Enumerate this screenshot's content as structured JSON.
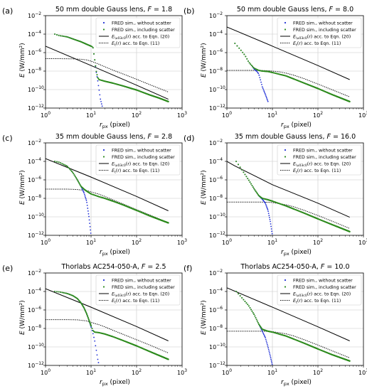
{
  "figure": {
    "legend": {
      "entries": [
        {
          "label": "FRED sim., without scatter",
          "style": "dots",
          "color": "#1f2fd6"
        },
        {
          "label": "FRED sim., including scatter",
          "style": "dots",
          "color": "#2e8b1e"
        },
        {
          "label": "E_{\\u03c0}(r) acc. to Eqn. (20)",
          "style": "solid",
          "color": "#000000"
        },
        {
          "label": "E_{t}(r) acc. to Eqn. (11)",
          "style": "dotted",
          "color": "#000000"
        }
      ],
      "placement": "top-right"
    },
    "colors": {
      "without_scatter": "#1f2fd6",
      "including_scatter": "#2e8b1e",
      "grid": "#c8c8c8"
    }
  },
  "chart_data": [
    {
      "type": "scatter",
      "panel_label": "(a)",
      "title": "50 mm double Gauss lens, F = 1.8",
      "xlabel": "r_px (pixel)",
      "ylabel": "E (W/mm²)",
      "xscale": "log",
      "yscale": "log",
      "xlim": [
        1,
        1000
      ],
      "ylim": [
        1e-12,
        0.01
      ],
      "grid": true,
      "xticks": [
        "10^0",
        "10^1",
        "10^2",
        "10^3"
      ],
      "yticks": [
        "10^-12",
        "10^-10",
        "10^-8",
        "10^-6",
        "10^-4",
        "10^-2"
      ],
      "series": [
        {
          "name": "FRED sim., without scatter",
          "x": [
            1.6,
            2,
            3,
            4,
            6,
            8,
            10,
            11,
            12,
            13,
            14,
            15,
            16,
            17,
            18
          ],
          "y": [
            0.0001,
            7e-05,
            5e-05,
            3e-05,
            1.5e-05,
            8e-06,
            5e-06,
            4e-06,
            2e-07,
            8e-09,
            1e-09,
            1e-10,
            1e-11,
            3e-12,
            1e-12
          ]
        },
        {
          "name": "FRED sim., including scatter",
          "x": [
            1.6,
            2,
            3,
            4,
            6,
            8,
            10,
            11,
            12,
            13,
            14,
            15,
            20,
            30,
            50,
            100,
            200,
            300,
            500
          ],
          "y": [
            0.0001,
            7e-05,
            5e-05,
            3e-05,
            1.5e-05,
            8e-06,
            5e-06,
            4e-06,
            2e-07,
            1e-08,
            2e-09,
            1.2e-09,
            8e-10,
            5e-10,
            2.5e-10,
            9e-11,
            2.5e-11,
            1.3e-11,
            5e-12
          ]
        },
        {
          "name": "E_{π}(r) acc. to Eqn. (20)",
          "x": [
            1,
            10,
            100,
            500
          ],
          "y": [
            5e-06,
            4e-08,
            3e-10,
            9e-12
          ]
        },
        {
          "name": "E_{t}(r) acc. to Eqn. (11)",
          "x": [
            1,
            2,
            4,
            6,
            8,
            10,
            15,
            20,
            30,
            50,
            100,
            200,
            500
          ],
          "y": [
            2.2e-07,
            2.2e-07,
            2.1e-07,
            1.9e-07,
            1.6e-07,
            1.2e-07,
            5.5e-08,
            3e-08,
            1.3e-08,
            5e-09,
            1.3e-09,
            3.3e-10,
            5.5e-11
          ]
        }
      ]
    },
    {
      "type": "scatter",
      "panel_label": "(b)",
      "title": "50 mm double Gauss lens, F = 8.0",
      "xlabel": "r_px (pixel)",
      "ylabel": "E (W/mm²)",
      "xscale": "log",
      "yscale": "log",
      "xlim": [
        1,
        1000
      ],
      "ylim": [
        1e-12,
        0.01
      ],
      "grid": true,
      "xticks": [
        "10^0",
        "10^1",
        "10^2",
        "10^3"
      ],
      "yticks": [
        "10^-12",
        "10^-10",
        "10^-8",
        "10^-6",
        "10^-4",
        "10^-2"
      ],
      "series": [
        {
          "name": "FRED sim., without scatter",
          "x": [
            1.5,
            2,
            2.5,
            3,
            3.5,
            4,
            4.5,
            5,
            5.5,
            6,
            7,
            8
          ],
          "y": [
            1e-05,
            2e-06,
            5e-07,
            1e-07,
            4e-08,
            1.5e-08,
            1e-08,
            5e-09,
            1e-09,
            2e-10,
            3e-11,
            5e-12
          ]
        },
        {
          "name": "FRED sim., including scatter",
          "x": [
            1.5,
            2,
            2.5,
            3,
            3.5,
            4,
            5,
            6,
            8,
            10,
            20,
            50,
            100,
            200,
            500
          ],
          "y": [
            1e-05,
            2e-06,
            5e-07,
            1e-07,
            4e-08,
            2e-08,
            1.2e-08,
            1e-08,
            9e-09,
            7e-09,
            3e-09,
            5e-10,
            1.3e-10,
            3e-11,
            5e-12
          ]
        },
        {
          "name": "E_{π}(r) acc. to Eqn. (20)",
          "x": [
            1,
            10,
            100,
            500
          ],
          "y": [
            0.0006,
            5e-06,
            4e-08,
            1.2e-09
          ]
        },
        {
          "name": "E_{t}(r) acc. to Eqn. (11)",
          "x": [
            1,
            3,
            5,
            8,
            10,
            15,
            20,
            30,
            50,
            100,
            200,
            500
          ],
          "y": [
            1.2e-08,
            1.2e-08,
            1.2e-08,
            1.1e-08,
            1e-08,
            8e-09,
            6e-09,
            3.5e-09,
            1.5e-09,
            4e-10,
            1e-10,
            1.6e-11
          ]
        }
      ]
    },
    {
      "type": "scatter",
      "panel_label": "(c)",
      "title": "35 mm double Gauss lens, F = 2.8",
      "xlabel": "r_px (pixel)",
      "ylabel": "E (W/mm²)",
      "xscale": "log",
      "yscale": "log",
      "xlim": [
        1,
        1000
      ],
      "ylim": [
        1e-12,
        0.01
      ],
      "grid": true,
      "xticks": [
        "10^0",
        "10^1",
        "10^2",
        "10^3"
      ],
      "yticks": [
        "10^-12",
        "10^-10",
        "10^-8",
        "10^-6",
        "10^-4",
        "10^-2"
      ],
      "series": [
        {
          "name": "FRED sim., without scatter",
          "x": [
            1.6,
            2,
            3,
            4,
            5,
            6,
            7,
            8,
            9,
            10
          ],
          "y": [
            0.0001,
            8e-05,
            3e-05,
            6e-06,
            1e-06,
            2e-07,
            4e-08,
            5e-09,
            1e-10,
            1e-12
          ]
        },
        {
          "name": "FRED sim., including scatter",
          "x": [
            1.6,
            2,
            3,
            4,
            5,
            6,
            7,
            8,
            10,
            15,
            20,
            30,
            50,
            100,
            200,
            500
          ],
          "y": [
            0.0001,
            8e-05,
            3e-05,
            6e-06,
            1e-06,
            2e-07,
            1e-07,
            6e-08,
            3e-08,
            1.5e-08,
            1e-08,
            5e-09,
            2e-09,
            5e-10,
            1.2e-10,
            2.2e-11
          ]
        },
        {
          "name": "E_{π}(r) acc. to Eqn. (20)",
          "x": [
            1,
            10,
            100,
            500
          ],
          "y": [
            0.0002,
            2e-06,
            1.6e-08,
            4.5e-10
          ]
        },
        {
          "name": "E_{t}(r) acc. to Eqn. (11)",
          "x": [
            1,
            2,
            3,
            5,
            8,
            10,
            15,
            20,
            30,
            50,
            100,
            200,
            500
          ],
          "y": [
            1e-07,
            1e-07,
            1e-07,
            9e-08,
            7e-08,
            5e-08,
            2.8e-08,
            1.6e-08,
            7e-09,
            2.5e-09,
            6e-10,
            1.5e-10,
            2.3e-11
          ]
        }
      ]
    },
    {
      "type": "scatter",
      "panel_label": "(d)",
      "title": "35 mm double Gauss lens, F = 16.0",
      "xlabel": "r_px (pixel)",
      "ylabel": "E (W/mm²)",
      "xscale": "log",
      "yscale": "log",
      "xlim": [
        1,
        1000
      ],
      "ylim": [
        1e-12,
        0.01
      ],
      "grid": true,
      "xticks": [
        "10^0",
        "10^1",
        "10^2",
        "10^3"
      ],
      "yticks": [
        "10^-12",
        "10^-10",
        "10^-8",
        "10^-6",
        "10^-4",
        "10^-2"
      ],
      "series": [
        {
          "name": "FRED sim., without scatter",
          "x": [
            1.6,
            2,
            3,
            4,
            5,
            6,
            7,
            8,
            9,
            10
          ],
          "y": [
            0.0001,
            2e-05,
            1e-06,
            1e-07,
            2e-08,
            8e-09,
            3e-09,
            5e-10,
            3e-11,
            1e-12
          ]
        },
        {
          "name": "FRED sim., including scatter",
          "x": [
            1.6,
            2,
            3,
            4,
            5,
            6,
            8,
            10,
            20,
            50,
            100,
            200,
            500
          ],
          "y": [
            0.0001,
            2e-05,
            1e-06,
            1e-07,
            2e-08,
            1e-08,
            7e-09,
            5e-09,
            1.5e-09,
            2.5e-10,
            6e-11,
            1.5e-11,
            2.5e-12
          ]
        },
        {
          "name": "E_{π}(r) acc. to Eqn. (20)",
          "x": [
            1,
            1.5,
            10,
            100,
            500
          ],
          "y": [
            0.0001,
            3.2e-05,
            3e-07,
            3e-09,
            9e-11
          ]
        },
        {
          "name": "E_{t}(r) acc. to Eqn. (11)",
          "x": [
            1,
            3,
            5,
            8,
            10,
            20,
            30,
            50,
            100,
            200,
            500
          ],
          "y": [
            4e-09,
            4e-09,
            4e-09,
            3.8e-09,
            3.5e-09,
            2e-09,
            1.2e-09,
            5e-10,
            1.4e-10,
            3.5e-11,
            5.5e-12
          ]
        }
      ]
    },
    {
      "type": "scatter",
      "panel_label": "(e)",
      "title": "Thorlabs AC254-050-A, F = 2.5",
      "xlabel": "r_px (pixel)",
      "ylabel": "E (W/mm²)",
      "xscale": "log",
      "yscale": "log",
      "xlim": [
        1,
        1000
      ],
      "ylim": [
        1e-12,
        0.01
      ],
      "grid": true,
      "xticks": [
        "10^0",
        "10^1",
        "10^2",
        "10^3"
      ],
      "yticks": [
        "10^-12",
        "10^-10",
        "10^-8",
        "10^-6",
        "10^-4",
        "10^-2"
      ],
      "series": [
        {
          "name": "FRED sim., without scatter",
          "x": [
            1.6,
            2,
            3,
            4,
            5,
            6,
            7,
            8,
            9,
            10,
            11,
            12,
            13,
            14,
            15
          ],
          "y": [
            0.0001,
            9e-05,
            6e-05,
            3.5e-05,
            1.7e-05,
            6e-06,
            1.7e-06,
            4e-07,
            8e-08,
            1.5e-08,
            3e-09,
            5e-10,
            5e-11,
            5e-12,
            1e-12
          ]
        },
        {
          "name": "FRED sim., including scatter",
          "x": [
            1.6,
            2,
            3,
            4,
            5,
            6,
            7,
            8,
            9,
            10,
            11,
            12,
            15,
            20,
            30,
            50,
            100,
            200,
            500
          ],
          "y": [
            0.0001,
            9e-05,
            6e-05,
            3.5e-05,
            1.7e-05,
            6e-06,
            1.7e-06,
            4e-07,
            8e-08,
            2e-08,
            6e-09,
            4e-09,
            3.5e-09,
            2.5e-09,
            1.3e-09,
            5e-10,
            1.3e-10,
            3e-11,
            4.5e-12
          ]
        },
        {
          "name": "E_{π}(r) acc. to Eqn. (20)",
          "x": [
            1,
            10,
            100,
            500
          ],
          "y": [
            0.0002,
            2e-06,
            1.6e-08,
            4.5e-10
          ]
        },
        {
          "name": "E_{t}(r) acc. to Eqn. (11)",
          "x": [
            1,
            2,
            3,
            5,
            8,
            10,
            15,
            20,
            30,
            50,
            100,
            200,
            500
          ],
          "y": [
            9e-08,
            9e-08,
            9e-08,
            8.5e-08,
            6.5e-08,
            4.5e-08,
            2.5e-08,
            1.5e-08,
            6.5e-09,
            2.4e-09,
            6e-10,
            1.5e-10,
            2.2e-11
          ]
        }
      ]
    },
    {
      "type": "scatter",
      "panel_label": "(f)",
      "title": "Thorlabs AC254-050-A, F = 10.0",
      "xlabel": "r_px (pixel)",
      "ylabel": "E (W/mm²)",
      "xscale": "log",
      "yscale": "log",
      "xlim": [
        1,
        1000
      ],
      "ylim": [
        1e-12,
        0.01
      ],
      "grid": true,
      "xticks": [
        "10^0",
        "10^1",
        "10^2",
        "10^3"
      ],
      "yticks": [
        "10^-12",
        "10^-10",
        "10^-8",
        "10^-6",
        "10^-4",
        "10^-2"
      ],
      "series": [
        {
          "name": "FRED sim., without scatter",
          "x": [
            1.6,
            2,
            3,
            4,
            5,
            6,
            7,
            8,
            9,
            10
          ],
          "y": [
            0.0001,
            3e-05,
            3e-06,
            3e-07,
            3e-08,
            5e-09,
            1e-09,
            1e-10,
            1e-11,
            1e-12
          ]
        },
        {
          "name": "FRED sim., including scatter",
          "x": [
            1.6,
            2,
            3,
            4,
            5,
            6,
            8,
            10,
            20,
            50,
            100,
            200,
            500
          ],
          "y": [
            0.0001,
            3e-05,
            3e-06,
            3e-07,
            3e-08,
            8e-09,
            5e-09,
            4e-09,
            1.5e-09,
            2.5e-10,
            6e-11,
            1.5e-11,
            3e-12
          ]
        },
        {
          "name": "E_{π}(r) acc. to Eqn. (20)",
          "x": [
            1,
            10,
            100,
            500
          ],
          "y": [
            0.00025,
            2e-06,
            1.5e-08,
            4.5e-10
          ]
        },
        {
          "name": "E_{t}(r) acc. to Eqn. (11)",
          "x": [
            1,
            3,
            5,
            8,
            10,
            20,
            30,
            50,
            100,
            200,
            500
          ],
          "y": [
            5e-09,
            5e-09,
            5e-09,
            4.8e-09,
            4.5e-09,
            2.6e-09,
            1.5e-09,
            6e-10,
            1.6e-10,
            4e-11,
            6.5e-12
          ]
        }
      ]
    }
  ]
}
